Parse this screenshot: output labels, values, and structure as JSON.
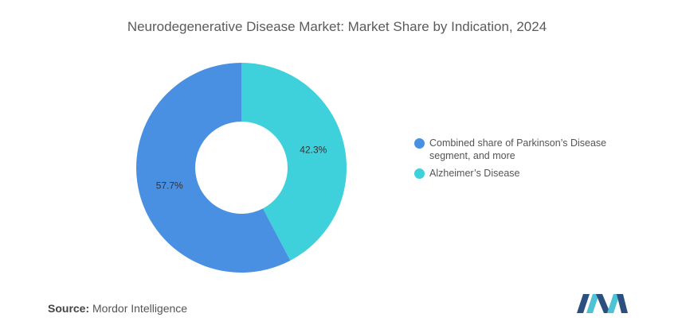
{
  "chart_data": {
    "type": "pie",
    "title": "Neurodegenerative Disease Market: Market Share by Indication, 2024",
    "series": [
      {
        "name": "Alzheimer's Disease",
        "value": 42.3,
        "label": "42.3%",
        "color": "#3ed1db"
      },
      {
        "name": "Combined share of Parkinson's Disease segment, and more",
        "value": 57.7,
        "label": "57.7%",
        "color": "#4a90e2"
      }
    ],
    "legend": [
      {
        "label": "Combined share of Parkinson’s Disease segment, and more",
        "color": "#4a90e2"
      },
      {
        "label": "Alzheimer’s Disease",
        "color": "#3ed1db"
      }
    ],
    "legend_position": "right"
  },
  "footer": {
    "source_label": "Source:",
    "source_text": "Mordor Intelligence"
  },
  "logo": {
    "icon": "mordor-intelligence-logo",
    "colors": [
      "#2b4f7e",
      "#4fc3d6"
    ]
  }
}
